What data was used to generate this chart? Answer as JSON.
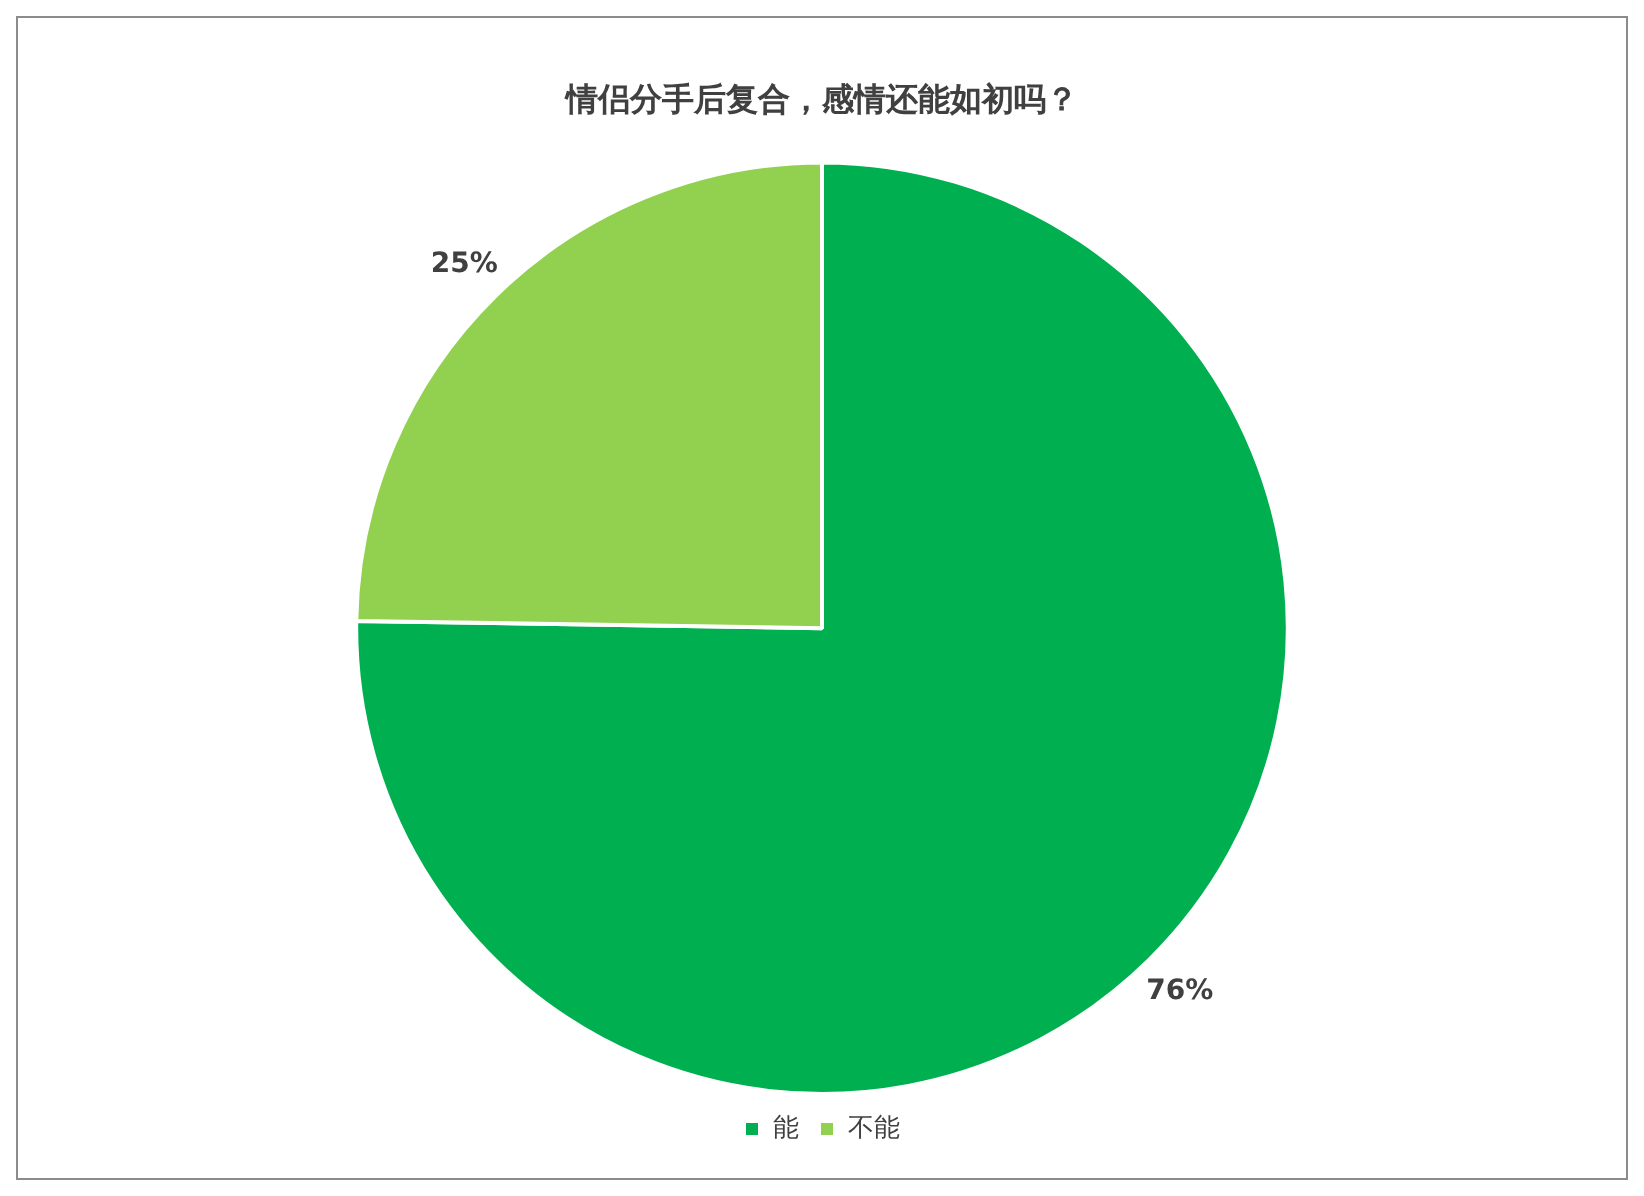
{
  "chart_data": {
    "type": "pie",
    "title": "情侣分手后复合，感情还能如初吗？",
    "categories": [
      "能",
      "不能"
    ],
    "values": [
      76,
      25
    ],
    "colors": [
      "#00b050",
      "#92d050"
    ],
    "value_labels": [
      "76%",
      "25%"
    ],
    "legend": "bottom"
  }
}
